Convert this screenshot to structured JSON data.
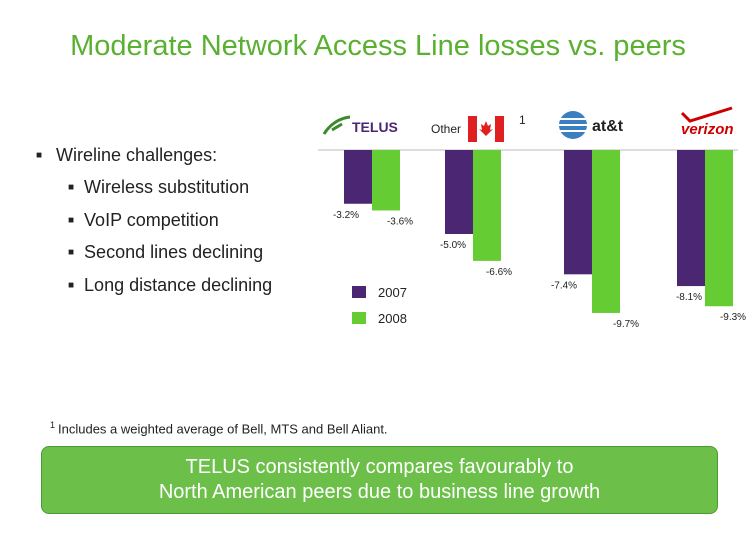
{
  "title": "Moderate Network Access Line losses vs. peers",
  "bullets": {
    "main": "Wireline challenges:",
    "items": [
      "Wireless substitution",
      "VoIP competition",
      "Second lines declining",
      "Long distance declining"
    ]
  },
  "chart_data": {
    "type": "bar",
    "categories": [
      "TELUS",
      "Other",
      "at&t",
      "verizon"
    ],
    "category_note": {
      "Other": "1"
    },
    "series": [
      {
        "name": "2007",
        "color": "#4a2673",
        "values": [
          -3.2,
          -5.0,
          -7.4,
          -8.1
        ]
      },
      {
        "name": "2008",
        "color": "#66cc33",
        "values": [
          -3.6,
          -6.6,
          -9.7,
          -9.3
        ]
      }
    ],
    "labels": [
      [
        "-3.2%",
        "-5.0%",
        "-7.4%",
        "-8.1%"
      ],
      [
        "-3.6%",
        "-6.6%",
        "-9.7%",
        "-9.3%"
      ]
    ],
    "ylim": [
      -10,
      0
    ],
    "legend_position": "center"
  },
  "logos": {
    "telus": "TELUS",
    "att": "at&t",
    "verizon": "verizon",
    "other": "Other"
  },
  "footnote": {
    "marker": "1",
    "text": "Includes a weighted average of Bell, MTS and Bell Aliant."
  },
  "callout": "TELUS consistently compares favourably to\nNorth American peers due to business line growth",
  "colors": {
    "title": "#5ab031",
    "bar2007": "#4a2673",
    "bar2008": "#66cc33",
    "callout": "#6cc04a"
  }
}
